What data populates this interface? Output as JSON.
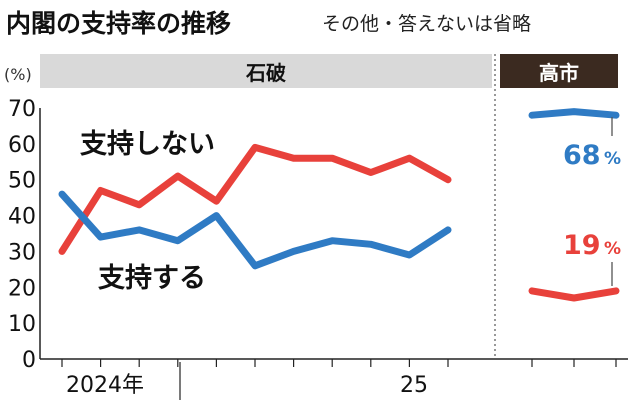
{
  "header": {
    "title": "内閣の支持率の推移",
    "subtitle": "その他・答えないは省略"
  },
  "chart_data": {
    "type": "line",
    "y_unit": "(%)",
    "ylim": [
      0,
      70
    ],
    "yticks": [
      "0",
      "10",
      "20",
      "30",
      "40",
      "50",
      "60",
      "70"
    ],
    "x_ticks": [
      "2024年",
      "25"
    ],
    "grid": false,
    "periods": [
      {
        "name": "石破",
        "series": [
          {
            "name": "支持しない",
            "color": "#e8413b",
            "values": [
              30,
              47,
              43,
              51,
              44,
              59,
              56,
              56,
              52,
              56,
              50
            ]
          },
          {
            "name": "支持する",
            "color": "#2f7bc4",
            "values": [
              46,
              34,
              36,
              33,
              40,
              26,
              30,
              33,
              32,
              29,
              36
            ]
          }
        ]
      },
      {
        "name": "高市",
        "series": [
          {
            "name": "支持しない",
            "color": "#e8413b",
            "values": [
              19,
              17,
              19
            ],
            "end_label": "19",
            "end_unit": "%"
          },
          {
            "name": "支持する",
            "color": "#2f7bc4",
            "values": [
              68,
              69,
              68
            ],
            "end_label": "68",
            "end_unit": "%"
          }
        ]
      }
    ]
  }
}
